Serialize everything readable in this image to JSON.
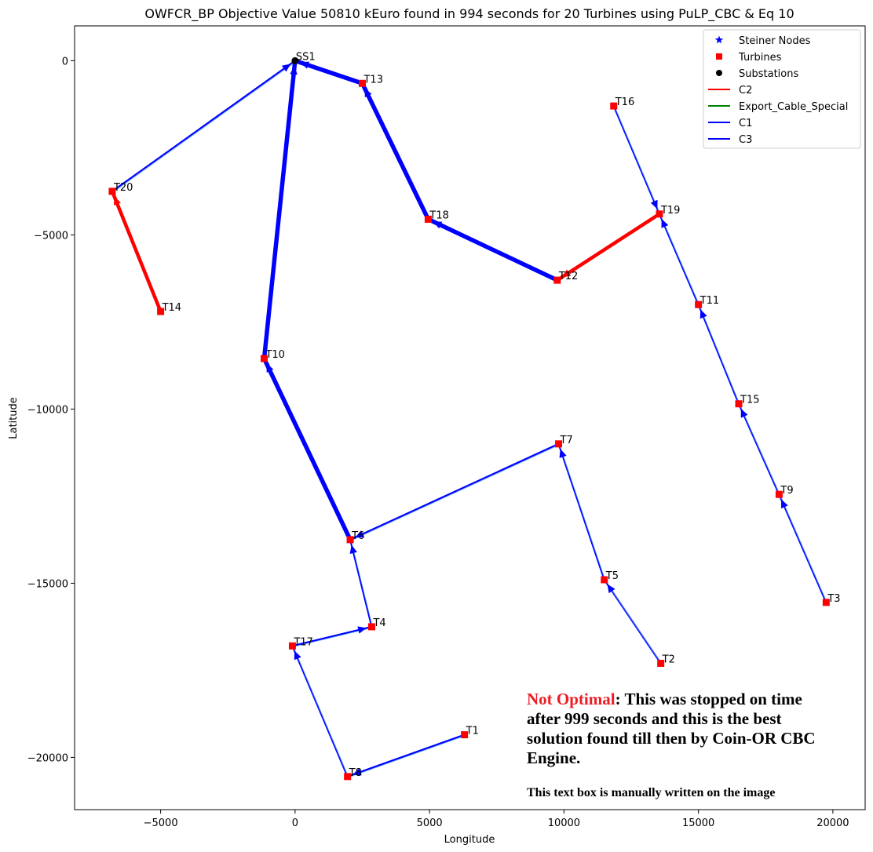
{
  "chart_data": {
    "type": "scatter",
    "title": "OWFCR_BP Objective Value 50810 kEuro found in 994 seconds for 20 Turbines using PuLP_CBC & Eq 10",
    "xlabel": "Longitude",
    "ylabel": "Latitude",
    "xlim": [
      -8200,
      21200
    ],
    "ylim": [
      -21500,
      1000
    ],
    "xticks": [
      -5000,
      0,
      5000,
      10000,
      15000,
      20000
    ],
    "yticks": [
      0,
      -5000,
      -10000,
      -15000,
      -20000
    ],
    "xtick_labels": [
      "−5000",
      "0",
      "5000",
      "10000",
      "15000",
      "20000"
    ],
    "ytick_labels": [
      "0",
      "−5000",
      "−10000",
      "−15000",
      "−20000"
    ],
    "grid": false,
    "legend_position": "top-right",
    "legend": [
      {
        "label": "Steiner Nodes",
        "marker": "star",
        "color": "#0000ff"
      },
      {
        "label": "Turbines",
        "marker": "square",
        "color": "#ff0000"
      },
      {
        "label": "Substations",
        "marker": "circle",
        "color": "#000000"
      },
      {
        "label": "C2",
        "marker": "line",
        "color": "#ff0000"
      },
      {
        "label": "Export_Cable_Special",
        "marker": "line",
        "color": "#008000"
      },
      {
        "label": "C1",
        "marker": "line",
        "color": "#0000ff"
      },
      {
        "label": "C3",
        "marker": "line",
        "color": "#0000ff"
      }
    ],
    "substations": [
      {
        "name": "SS1",
        "x": 0,
        "y": 0
      }
    ],
    "turbines": [
      {
        "name": "T1",
        "x": 6300,
        "y": -19350
      },
      {
        "name": "T2",
        "x": 13600,
        "y": -17300
      },
      {
        "name": "T3",
        "x": 19750,
        "y": -15550
      },
      {
        "name": "T4",
        "x": 2850,
        "y": -16250
      },
      {
        "name": "T5",
        "x": 11500,
        "y": -14900
      },
      {
        "name": "T6",
        "x": 2050,
        "y": -13750
      },
      {
        "name": "T7",
        "x": 9800,
        "y": -11000
      },
      {
        "name": "T8",
        "x": 1950,
        "y": -20550
      },
      {
        "name": "T9",
        "x": 18000,
        "y": -12450
      },
      {
        "name": "T10",
        "x": -1150,
        "y": -8550
      },
      {
        "name": "T11",
        "x": 15000,
        "y": -7000
      },
      {
        "name": "T12",
        "x": 9750,
        "y": -6300
      },
      {
        "name": "T13",
        "x": 2500,
        "y": -650
      },
      {
        "name": "T14",
        "x": -5000,
        "y": -7200
      },
      {
        "name": "T15",
        "x": 16500,
        "y": -9850
      },
      {
        "name": "T16",
        "x": 11850,
        "y": -1300
      },
      {
        "name": "T17",
        "x": -100,
        "y": -16800
      },
      {
        "name": "T18",
        "x": 4950,
        "y": -4550
      },
      {
        "name": "T19",
        "x": 13550,
        "y": -4400
      },
      {
        "name": "T20",
        "x": -6800,
        "y": -3750
      }
    ],
    "cables": [
      {
        "from": "T20",
        "to": "SS1",
        "type": "C1"
      },
      {
        "from": "T14",
        "to": "T20",
        "type": "C2"
      },
      {
        "from": "T13",
        "to": "SS1",
        "type": "C3"
      },
      {
        "from": "T18",
        "to": "T13",
        "type": "C3"
      },
      {
        "from": "T12",
        "to": "T18",
        "type": "C3"
      },
      {
        "from": "T19",
        "to": "T12",
        "type": "C2"
      },
      {
        "from": "T16",
        "to": "T19",
        "type": "C1"
      },
      {
        "from": "T11",
        "to": "T19",
        "type": "C1"
      },
      {
        "from": "T15",
        "to": "T11",
        "type": "C1"
      },
      {
        "from": "T9",
        "to": "T15",
        "type": "C1"
      },
      {
        "from": "T3",
        "to": "T9",
        "type": "C1"
      },
      {
        "from": "T10",
        "to": "SS1",
        "type": "C3"
      },
      {
        "from": "T6",
        "to": "T10",
        "type": "C3"
      },
      {
        "from": "T7",
        "to": "T6",
        "type": "C1"
      },
      {
        "from": "T5",
        "to": "T7",
        "type": "C1"
      },
      {
        "from": "T2",
        "to": "T5",
        "type": "C1"
      },
      {
        "from": "T4",
        "to": "T6",
        "type": "C1"
      },
      {
        "from": "T17",
        "to": "T4",
        "type": "C1"
      },
      {
        "from": "T8",
        "to": "T17",
        "type": "C1"
      },
      {
        "from": "T1",
        "to": "T8",
        "type": "C1"
      }
    ],
    "annotation": {
      "highlight": "Not Optimal",
      "highlight_color": "#ee1c24",
      "lines": [
        ": This was stopped on time",
        "after 999 seconds and this is the best",
        "solution found till then by Coin-OR CBC",
        "Engine."
      ],
      "footnote": "This text box is manually written on the image"
    }
  }
}
